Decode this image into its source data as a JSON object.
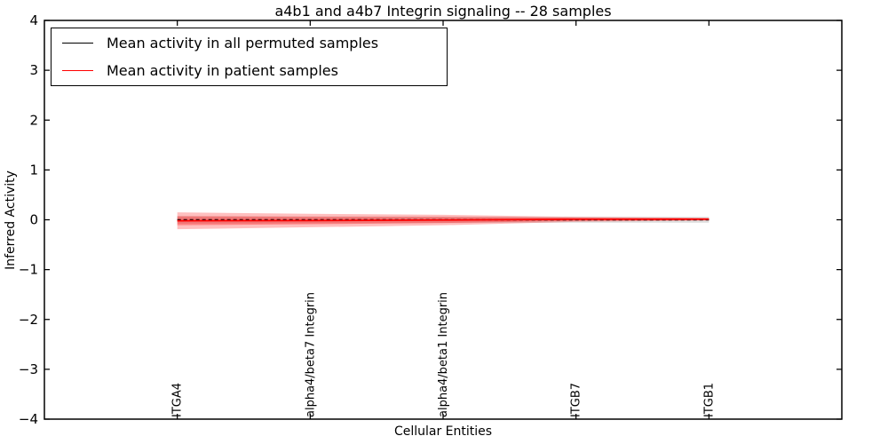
{
  "figure": {
    "title": "a4b1 and a4b7 Integrin signaling -- 28 samples",
    "xlabel": "Cellular Entities",
    "ylabel": "Inferred Activity"
  },
  "legend": {
    "position": "upper left",
    "entries": [
      {
        "label": "Mean activity in all permuted samples",
        "color": "#000000"
      },
      {
        "label": "Mean activity in patient samples",
        "color": "#ff0000"
      }
    ]
  },
  "chart_data": {
    "type": "line",
    "title": "a4b1 and a4b7 Integrin signaling -- 28 samples",
    "xlabel": "Cellular Entities",
    "ylabel": "Inferred Activity",
    "xlim": [
      -1,
      5
    ],
    "ylim": [
      -4,
      4
    ],
    "yticks": [
      4,
      3,
      2,
      1,
      0,
      -1,
      -2,
      -3,
      -4
    ],
    "x": [
      0,
      1,
      2,
      3,
      4
    ],
    "categories": [
      "ITGA4",
      "alpha4/beta7 Integrin",
      "alpha4/beta1 Integrin",
      "ITGB7",
      "ITGB1"
    ],
    "grid": false,
    "tick_direction": "in",
    "frame_on": true,
    "legend_position": "upper left",
    "series": [
      {
        "name": "Mean activity in all permuted samples",
        "color": "#000000",
        "line_style": "dashed",
        "values": [
          0.0,
          0.0,
          0.0,
          0.0,
          0.0
        ],
        "band_half_width": [
          0.075,
          0.07,
          0.065,
          0.06,
          0.06
        ],
        "band_color": "#000000",
        "band_opacity": 0.12
      },
      {
        "name": "Mean activity in patient samples",
        "color": "#ff0000",
        "line_style": "solid",
        "values": [
          -0.02,
          -0.015,
          -0.005,
          0.01,
          0.012
        ],
        "band_half_width_outer": [
          0.17,
          0.135,
          0.105,
          0.05,
          0.028
        ],
        "band_half_width_inner": [
          0.09,
          0.075,
          0.06,
          0.03,
          0.018
        ],
        "band_color": "#ff0000",
        "band_opacity": 0.25
      }
    ]
  },
  "style": {
    "frame_color": "#000000",
    "background": "#ffffff"
  }
}
